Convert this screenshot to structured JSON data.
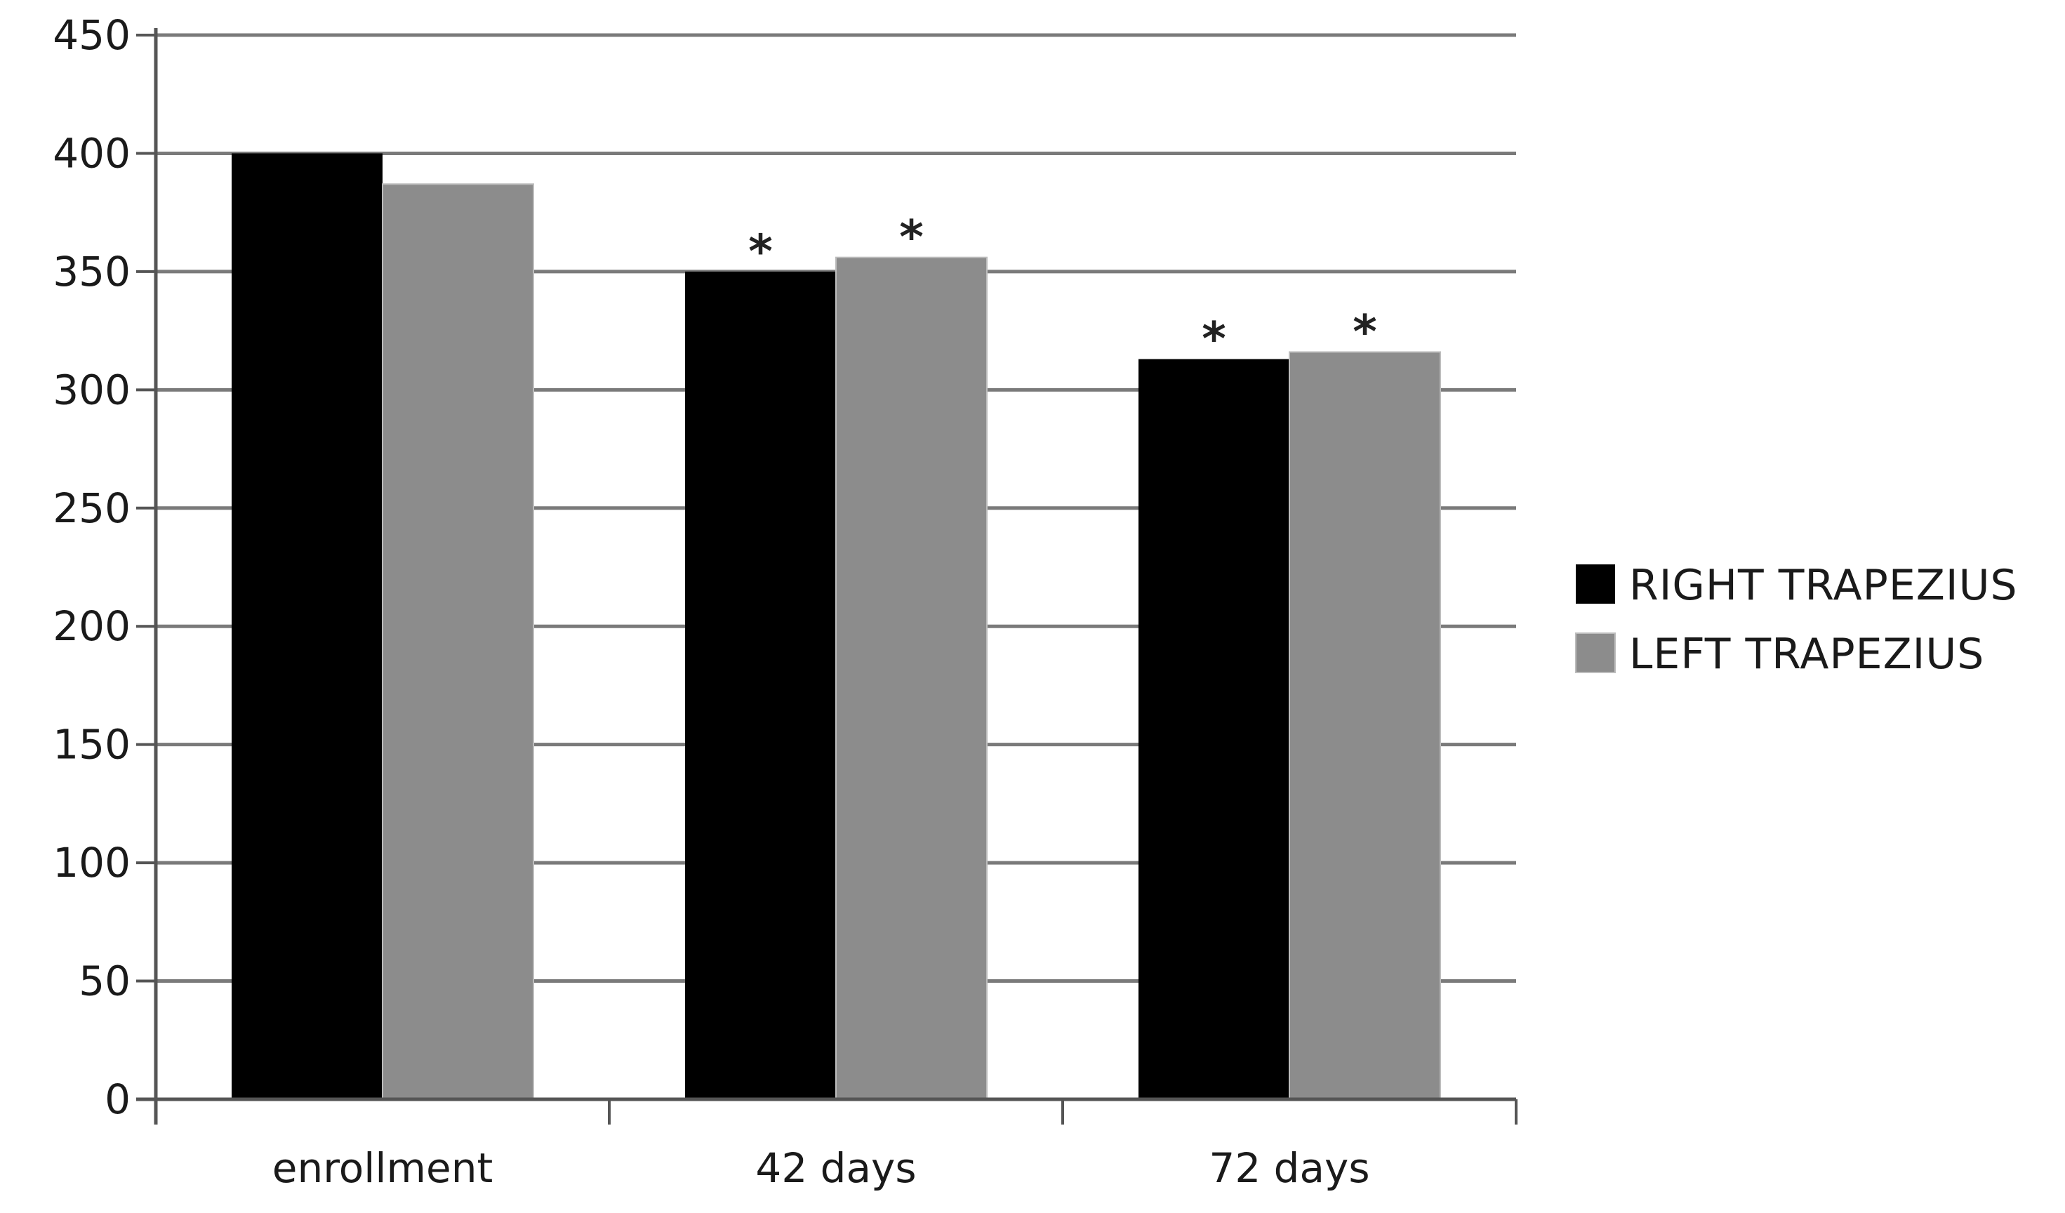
{
  "chart_data": {
    "type": "bar",
    "categories": [
      "enrollment",
      "42 days",
      "72 days"
    ],
    "series": [
      {
        "name": "RIGHT TRAPEZIUS",
        "values": [
          400,
          350,
          313
        ],
        "color": "#000000"
      },
      {
        "name": "LEFT TRAPEZIUS",
        "values": [
          387,
          356,
          316
        ],
        "color": "#8c8c8c"
      }
    ],
    "annotations": [
      {
        "category": "42 days",
        "series": "RIGHT TRAPEZIUS",
        "text": "*"
      },
      {
        "category": "42 days",
        "series": "LEFT TRAPEZIUS",
        "text": "*"
      },
      {
        "category": "72 days",
        "series": "RIGHT TRAPEZIUS",
        "text": "*"
      },
      {
        "category": "72 days",
        "series": "LEFT TRAPEZIUS",
        "text": "*"
      }
    ],
    "title": "",
    "xlabel": "",
    "ylabel": "",
    "ylim": [
      0,
      450
    ],
    "yticks": [
      0,
      50,
      100,
      150,
      200,
      250,
      300,
      350,
      400,
      450
    ],
    "grid": true,
    "legend": "right"
  }
}
